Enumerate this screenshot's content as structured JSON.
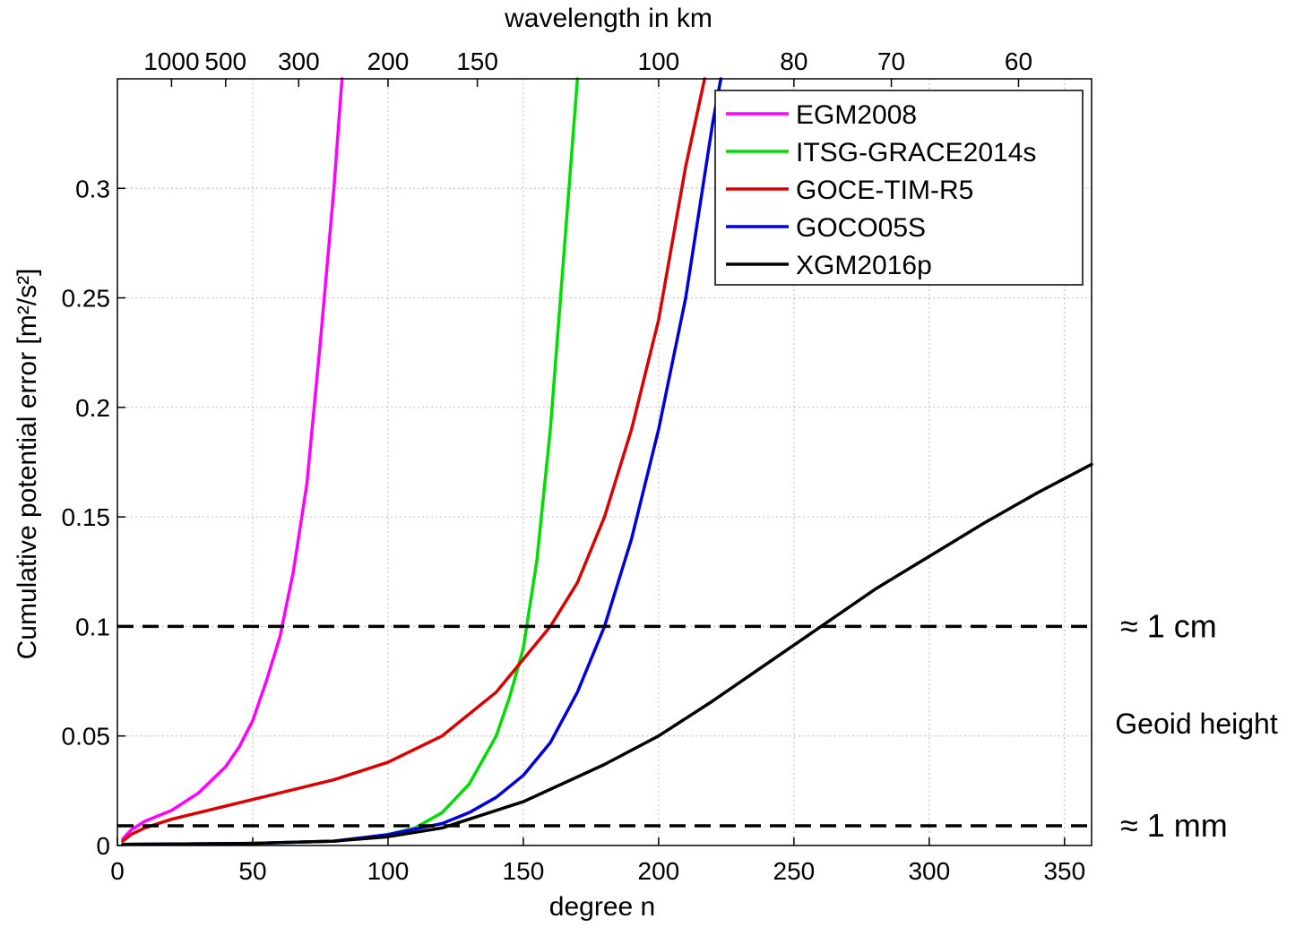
{
  "chart_data": {
    "type": "line",
    "xlabel": "degree n",
    "ylabel": "Cumulative potential error [m²/s²]",
    "top_xlabel": "wavelength in km",
    "xlim": [
      0,
      360
    ],
    "ylim": [
      0,
      0.35
    ],
    "x_ticks": [
      0,
      50,
      100,
      150,
      200,
      250,
      300,
      350
    ],
    "x_tick_labels": [
      "0",
      "50",
      "100",
      "150",
      "200",
      "250",
      "300",
      "350"
    ],
    "y_ticks": [
      0,
      0.05,
      0.1,
      0.15,
      0.2,
      0.25,
      0.3
    ],
    "y_tick_labels": [
      "0",
      "0.05",
      "0.1",
      "0.15",
      "0.2",
      "0.25",
      "0.3"
    ],
    "top_ticks": [
      {
        "degree": 20,
        "label": "1000"
      },
      {
        "degree": 40,
        "label": "500"
      },
      {
        "degree": 67,
        "label": "300"
      },
      {
        "degree": 100,
        "label": "200"
      },
      {
        "degree": 133,
        "label": "150"
      },
      {
        "degree": 200,
        "label": "100"
      },
      {
        "degree": 250,
        "label": "80"
      },
      {
        "degree": 286,
        "label": "70"
      },
      {
        "degree": 333,
        "label": "60"
      }
    ],
    "grid": true,
    "legend_position": "top-right",
    "series": [
      {
        "name": "EGM2008",
        "color": "#ff00ff",
        "x": [
          2,
          5,
          10,
          20,
          30,
          40,
          45,
          50,
          55,
          60,
          65,
          70,
          75,
          80,
          83
        ],
        "y": [
          0.003,
          0.007,
          0.011,
          0.016,
          0.024,
          0.036,
          0.045,
          0.057,
          0.075,
          0.095,
          0.125,
          0.165,
          0.23,
          0.3,
          0.35
        ]
      },
      {
        "name": "ITSG-GRACE2014s",
        "color": "#00dd00",
        "x": [
          2,
          50,
          80,
          100,
          110,
          120,
          130,
          140,
          145,
          150,
          155,
          160,
          165,
          170
        ],
        "y": [
          0.0005,
          0.001,
          0.002,
          0.005,
          0.008,
          0.015,
          0.028,
          0.05,
          0.068,
          0.09,
          0.13,
          0.19,
          0.27,
          0.35
        ]
      },
      {
        "name": "GOCE-TIM-R5",
        "color": "#dd0000",
        "x": [
          2,
          5,
          10,
          20,
          40,
          60,
          80,
          100,
          120,
          140,
          150,
          160,
          170,
          180,
          190,
          200,
          210,
          217
        ],
        "y": [
          0.002,
          0.005,
          0.008,
          0.012,
          0.018,
          0.024,
          0.03,
          0.038,
          0.05,
          0.07,
          0.085,
          0.1,
          0.12,
          0.15,
          0.19,
          0.24,
          0.31,
          0.35
        ]
      },
      {
        "name": "GOCO05S",
        "color": "#0000dd",
        "x": [
          2,
          50,
          80,
          100,
          120,
          130,
          140,
          150,
          160,
          170,
          180,
          190,
          200,
          210,
          220,
          223
        ],
        "y": [
          0.0005,
          0.001,
          0.002,
          0.005,
          0.01,
          0.015,
          0.022,
          0.032,
          0.047,
          0.07,
          0.1,
          0.14,
          0.19,
          0.25,
          0.33,
          0.35
        ]
      },
      {
        "name": "XGM2016p",
        "color": "#000000",
        "x": [
          2,
          50,
          80,
          100,
          120,
          150,
          180,
          200,
          220,
          240,
          260,
          280,
          300,
          320,
          340,
          360
        ],
        "y": [
          0.0005,
          0.001,
          0.002,
          0.004,
          0.008,
          0.02,
          0.037,
          0.05,
          0.066,
          0.083,
          0.1,
          0.117,
          0.132,
          0.147,
          0.161,
          0.174
        ]
      }
    ],
    "reference_lines": [
      {
        "y": 0.1,
        "label": "≈ 1 cm"
      },
      {
        "y": 0.009,
        "label": "≈ 1 mm"
      }
    ],
    "annotation": "Geoid height"
  }
}
